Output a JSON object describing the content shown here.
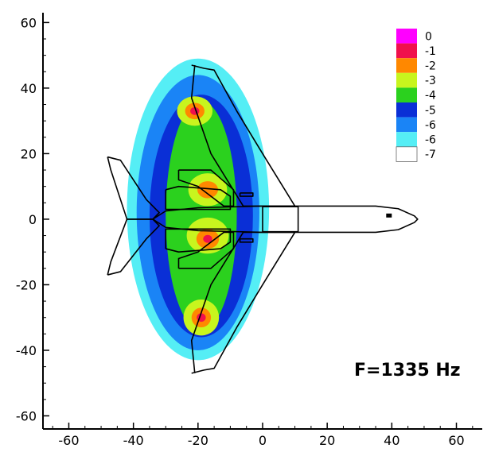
{
  "chart_data": {
    "type": "heatmap",
    "title": "",
    "annotation": "F=1335 Hz",
    "xlabel": "",
    "ylabel": "",
    "xlim": [
      -68,
      68
    ],
    "ylim": [
      -64,
      63
    ],
    "x_ticks": [
      -60,
      -40,
      -20,
      0,
      20,
      40,
      60
    ],
    "y_ticks": [
      -60,
      -40,
      -20,
      0,
      20,
      40,
      60
    ],
    "legend": {
      "position": "top-right",
      "levels": [
        {
          "label": "0",
          "color": "#ff00ff"
        },
        {
          "label": "-1",
          "color": "#f0104c"
        },
        {
          "label": "-2",
          "color": "#ff8800"
        },
        {
          "label": "-3",
          "color": "#c8f51e"
        },
        {
          "label": "-4",
          "color": "#2bd11e"
        },
        {
          "label": "-5",
          "color": "#0a2fd6"
        },
        {
          "label": "-6",
          "color": "#1a84f6"
        },
        {
          "label": "-7",
          "color": "#55eef5"
        }
      ]
    },
    "background_color": "#ffffff",
    "outline_color": "#000000",
    "sources": [
      {
        "x": -21,
        "y": 33,
        "level": "-1"
      },
      {
        "x": -17,
        "y": 9,
        "level": "-2"
      },
      {
        "x": -17,
        "y": -6,
        "level": "-1"
      },
      {
        "x": -19,
        "y": -30,
        "level": "-1"
      }
    ],
    "contours": [
      {
        "level": "-7",
        "cx": -20,
        "cy": 3,
        "rx": 22,
        "ry": 46
      },
      {
        "level": "-6",
        "cx": -20,
        "cy": 2,
        "rx": 19,
        "ry": 42
      },
      {
        "level": "-5",
        "cx": -19,
        "cy": 1,
        "rx": 16,
        "ry": 37
      },
      {
        "level": "-4",
        "cx": -19,
        "cy": 1,
        "rx": 11,
        "ry": 35
      },
      {
        "level": "-3",
        "cx": -21,
        "cy": 33,
        "rx": 5.5,
        "ry": 4.5
      },
      {
        "level": "-3",
        "cx": -17,
        "cy": 9,
        "rx": 6,
        "ry": 5
      },
      {
        "level": "-3",
        "cx": -17,
        "cy": -5,
        "rx": 6.5,
        "ry": 5.5
      },
      {
        "level": "-3",
        "cx": -19,
        "cy": -30,
        "rx": 5.5,
        "ry": 5.5
      },
      {
        "level": "-2",
        "cx": -21,
        "cy": 33,
        "rx": 3,
        "ry": 2.5
      },
      {
        "level": "-2",
        "cx": -17,
        "cy": 9,
        "rx": 3.2,
        "ry": 2.6
      },
      {
        "level": "-2",
        "cx": -17,
        "cy": -6,
        "rx": 3.5,
        "ry": 3
      },
      {
        "level": "-2",
        "cx": -19,
        "cy": -30,
        "rx": 3,
        "ry": 3
      },
      {
        "level": "-1",
        "cx": -21,
        "cy": 33,
        "rx": 1.4,
        "ry": 1.2
      },
      {
        "level": "-1",
        "cx": -17,
        "cy": -6,
        "rx": 1.4,
        "ry": 1.2
      },
      {
        "level": "-1",
        "cx": -19,
        "cy": -30,
        "rx": 1.4,
        "ry": 1.3
      }
    ],
    "aircraft_outline": {
      "fuselage": [
        [
          -34,
          0
        ],
        [
          -30,
          2.5
        ],
        [
          -20,
          3.5
        ],
        [
          0,
          4
        ],
        [
          35,
          4
        ],
        [
          42,
          3.2
        ],
        [
          47,
          1
        ],
        [
          48,
          0
        ],
        [
          47,
          -1
        ],
        [
          42,
          -3.2
        ],
        [
          35,
          -4
        ],
        [
          0,
          -4
        ],
        [
          -20,
          -3.5
        ],
        [
          -30,
          -2.5
        ],
        [
          -34,
          0
        ]
      ],
      "right_wing": [
        [
          -22,
          47
        ],
        [
          -18,
          46
        ],
        [
          -15,
          45.5
        ],
        [
          -8,
          33
        ],
        [
          0,
          20
        ],
        [
          10,
          4
        ],
        [
          -6,
          4
        ],
        [
          -16,
          20
        ],
        [
          -22,
          37
        ],
        [
          -21,
          47
        ]
      ],
      "left_wing": [
        [
          -22,
          -47
        ],
        [
          -18,
          -46
        ],
        [
          -15,
          -45.5
        ],
        [
          -8,
          -33
        ],
        [
          0,
          -20
        ],
        [
          10,
          -4
        ],
        [
          -6,
          -4
        ],
        [
          -16,
          -20
        ],
        [
          -22,
          -37
        ],
        [
          -21,
          -47
        ]
      ],
      "tail_upper": [
        [
          -48,
          19
        ],
        [
          -44,
          18
        ],
        [
          -36,
          6
        ],
        [
          -32,
          2
        ],
        [
          -34,
          0
        ],
        [
          -42,
          0
        ],
        [
          -47,
          15
        ],
        [
          -48,
          19
        ]
      ],
      "tail_lower": [
        [
          -48,
          -17
        ],
        [
          -44,
          -16
        ],
        [
          -36,
          -6
        ],
        [
          -32,
          -2
        ],
        [
          -34,
          0
        ],
        [
          -42,
          0
        ],
        [
          -47,
          -13
        ],
        [
          -48,
          -17
        ]
      ],
      "nacelle_upper": [
        [
          -30,
          9
        ],
        [
          -26,
          10
        ],
        [
          -13,
          9
        ],
        [
          -10,
          7
        ],
        [
          -10,
          3
        ],
        [
          -30,
          3
        ],
        [
          -30,
          9
        ]
      ],
      "nacelle_lower": [
        [
          -30,
          -9
        ],
        [
          -26,
          -10
        ],
        [
          -13,
          -9
        ],
        [
          -10,
          -7
        ],
        [
          -10,
          -3
        ],
        [
          -30,
          -3
        ],
        [
          -30,
          -9
        ]
      ],
      "flap_upper": [
        [
          -26,
          15
        ],
        [
          -16,
          15
        ],
        [
          -9,
          9
        ],
        [
          -9,
          4
        ],
        [
          -12,
          4
        ],
        [
          -20,
          10
        ],
        [
          -26,
          12
        ],
        [
          -26,
          15
        ]
      ],
      "flap_lower": [
        [
          -26,
          -15
        ],
        [
          -16,
          -15
        ],
        [
          -9,
          -9
        ],
        [
          -9,
          -4
        ],
        [
          -12,
          -4
        ],
        [
          -20,
          -10
        ],
        [
          -26,
          -12
        ],
        [
          -26,
          -15
        ]
      ],
      "cabin_box": [
        [
          0,
          3.8
        ],
        [
          11,
          3.8
        ],
        [
          11,
          -3.8
        ],
        [
          0,
          -3.8
        ],
        [
          0,
          3.8
        ]
      ],
      "engine_pod_upper": [
        [
          -7,
          8
        ],
        [
          -3,
          8
        ],
        [
          -3,
          7
        ],
        [
          -7,
          7
        ],
        [
          -7,
          8
        ]
      ],
      "engine_pod_lower": [
        [
          -7,
          -6
        ],
        [
          -3,
          -6
        ],
        [
          -3,
          -7
        ],
        [
          -7,
          -7
        ],
        [
          -7,
          -6
        ]
      ],
      "marker": {
        "x": 39,
        "y": 1
      }
    }
  }
}
